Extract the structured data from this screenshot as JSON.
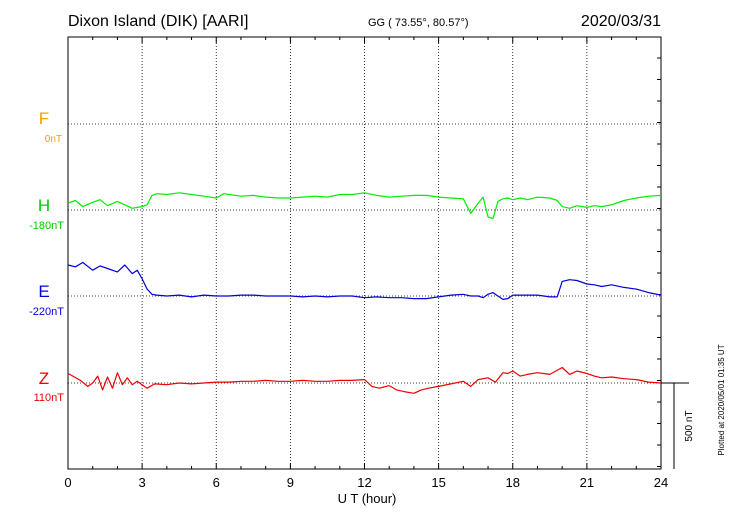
{
  "chart_data": {
    "type": "line",
    "title": "Dixon Island (DIK)  [AARI]",
    "coords": "GG ( 73.55°,  80.57°)",
    "date": "2020/03/31",
    "xlabel": "U T (hour)",
    "xlim": [
      0,
      24
    ],
    "xticks": [
      "0",
      "3",
      "6",
      "9",
      "12",
      "15",
      "18",
      "21",
      "24"
    ],
    "grid": true,
    "scale_bar_label": "500 nT",
    "plotted_note": "Plotted at 2020/05/01 01:35 UT",
    "series": [
      {
        "name": "F",
        "baseline_label": "0nT",
        "color": "#f0a000",
        "values": []
      },
      {
        "name": "H",
        "baseline_label": "-180nT",
        "color": "#00ee00",
        "x": [
          0,
          0.3,
          0.6,
          1.0,
          1.3,
          1.6,
          2.0,
          2.3,
          2.6,
          2.8,
          3.0,
          3.2,
          3.4,
          3.6,
          4.0,
          4.5,
          5.0,
          5.5,
          6.0,
          6.3,
          7.0,
          7.5,
          8.0,
          8.5,
          9.0,
          9.5,
          10.0,
          10.5,
          11.0,
          11.5,
          12.0,
          12.5,
          13.0,
          13.5,
          14.0,
          14.5,
          15.0,
          15.5,
          16.0,
          16.3,
          16.6,
          16.8,
          17.0,
          17.2,
          17.4,
          17.6,
          17.8,
          18.0,
          18.3,
          18.6,
          19.0,
          19.5,
          19.8,
          20.0,
          20.3,
          20.6,
          21.0,
          21.3,
          21.6,
          22.0,
          22.5,
          23.0,
          23.5,
          24.0
        ],
        "values": [
          40,
          55,
          20,
          45,
          60,
          25,
          50,
          30,
          10,
          15,
          20,
          30,
          85,
          95,
          90,
          100,
          90,
          80,
          70,
          95,
          80,
          85,
          75,
          70,
          70,
          75,
          80,
          75,
          90,
          90,
          100,
          85,
          75,
          80,
          85,
          85,
          75,
          70,
          65,
          -20,
          40,
          75,
          -40,
          -50,
          50,
          65,
          70,
          60,
          70,
          60,
          75,
          70,
          55,
          20,
          10,
          25,
          15,
          25,
          20,
          30,
          55,
          70,
          80,
          85
        ]
      },
      {
        "name": "E",
        "baseline_label": "-220nT",
        "color": "#0000dd",
        "x": [
          0,
          0.3,
          0.6,
          1.0,
          1.3,
          1.6,
          2.0,
          2.3,
          2.6,
          2.8,
          3.0,
          3.2,
          3.4,
          3.6,
          4.0,
          4.5,
          5.0,
          5.5,
          6.0,
          6.5,
          7.0,
          7.5,
          8.0,
          8.5,
          9.0,
          9.5,
          10.0,
          10.5,
          11.0,
          11.5,
          12.0,
          12.5,
          13.0,
          13.5,
          14.0,
          14.5,
          15.0,
          15.5,
          16.0,
          16.3,
          16.6,
          16.8,
          17.0,
          17.2,
          17.4,
          17.6,
          17.8,
          18.0,
          18.3,
          18.6,
          19.0,
          19.5,
          19.8,
          20.0,
          20.3,
          20.6,
          21.0,
          21.3,
          21.6,
          22.0,
          22.5,
          23.0,
          23.5,
          24.0
        ],
        "values": [
          180,
          170,
          195,
          150,
          175,
          160,
          140,
          180,
          130,
          150,
          100,
          40,
          10,
          5,
          0,
          5,
          -5,
          5,
          0,
          0,
          5,
          5,
          0,
          0,
          0,
          -5,
          0,
          -5,
          0,
          0,
          -10,
          -5,
          -10,
          -10,
          -15,
          -15,
          -5,
          5,
          10,
          0,
          0,
          -10,
          10,
          20,
          0,
          -20,
          -15,
          5,
          5,
          5,
          5,
          -5,
          -5,
          85,
          95,
          90,
          70,
          65,
          55,
          65,
          50,
          40,
          20,
          5
        ]
      },
      {
        "name": "Z",
        "baseline_label": "110nT",
        "color": "#ee0000",
        "x": [
          0,
          0.2,
          0.5,
          0.8,
          1.0,
          1.2,
          1.4,
          1.6,
          1.8,
          2.0,
          2.2,
          2.4,
          2.6,
          2.8,
          3.0,
          3.2,
          3.5,
          4.0,
          4.5,
          5.0,
          5.5,
          6.0,
          6.5,
          7.0,
          7.5,
          8.0,
          8.5,
          9.0,
          9.5,
          10.0,
          10.5,
          11.0,
          11.5,
          12.0,
          12.3,
          12.6,
          13.0,
          13.3,
          13.6,
          14.0,
          14.3,
          14.6,
          15.0,
          15.5,
          16.0,
          16.3,
          16.6,
          17.0,
          17.3,
          17.6,
          17.8,
          18.0,
          18.3,
          18.6,
          19.0,
          19.5,
          20.0,
          20.3,
          20.6,
          21.0,
          21.3,
          21.6,
          22.0,
          22.5,
          23.0,
          23.5,
          24.0
        ],
        "values": [
          55,
          40,
          15,
          -20,
          0,
          40,
          -40,
          35,
          -30,
          60,
          -10,
          30,
          -10,
          10,
          -10,
          -30,
          -5,
          -10,
          0,
          -5,
          0,
          5,
          5,
          10,
          10,
          15,
          10,
          10,
          15,
          10,
          10,
          15,
          15,
          20,
          -20,
          -30,
          -15,
          -40,
          -50,
          -60,
          -40,
          -30,
          -20,
          -5,
          10,
          -20,
          20,
          30,
          5,
          60,
          55,
          70,
          40,
          50,
          60,
          50,
          90,
          50,
          70,
          55,
          40,
          30,
          35,
          25,
          20,
          5,
          0
        ]
      }
    ]
  }
}
